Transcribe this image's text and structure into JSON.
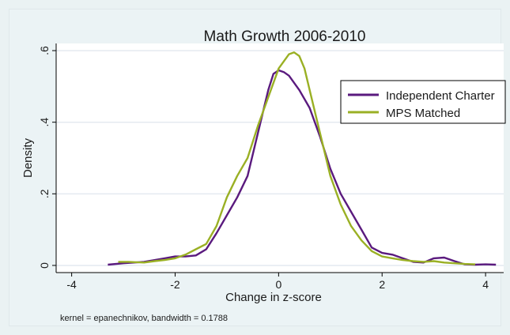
{
  "chart_data": {
    "type": "line",
    "title": "Math Growth 2006-2010",
    "xlabel": "Change in z-score",
    "ylabel": "Density",
    "note": "kernel = epanechnikov, bandwidth = 0.1788",
    "xlim": [
      -4.3,
      4.35
    ],
    "ylim": [
      -0.02,
      0.62
    ],
    "x_ticks": [
      -4,
      -2,
      0,
      2,
      4
    ],
    "x_tick_labels": [
      "-4",
      "-2",
      "0",
      "2",
      "4"
    ],
    "y_ticks": [
      0,
      0.2,
      0.4,
      0.6
    ],
    "y_tick_labels": [
      "0",
      ".2",
      ".4",
      ".6"
    ],
    "grid": true,
    "legend_position": "right",
    "series": [
      {
        "name": "Independent Charter",
        "color": "#5a1a7e",
        "x": [
          -3.3,
          -3.0,
          -2.6,
          -2.2,
          -2.0,
          -1.8,
          -1.6,
          -1.4,
          -1.2,
          -1.0,
          -0.8,
          -0.6,
          -0.4,
          -0.2,
          -0.1,
          0.0,
          0.1,
          0.2,
          0.4,
          0.6,
          0.8,
          1.0,
          1.2,
          1.4,
          1.6,
          1.8,
          2.0,
          2.2,
          2.4,
          2.6,
          2.8,
          3.0,
          3.2,
          3.4,
          3.6,
          3.8,
          4.0,
          4.2
        ],
        "y": [
          0.002,
          0.006,
          0.01,
          0.02,
          0.025,
          0.025,
          0.028,
          0.045,
          0.09,
          0.14,
          0.19,
          0.25,
          0.37,
          0.49,
          0.535,
          0.545,
          0.54,
          0.53,
          0.49,
          0.44,
          0.36,
          0.27,
          0.2,
          0.15,
          0.1,
          0.05,
          0.035,
          0.03,
          0.02,
          0.01,
          0.008,
          0.02,
          0.022,
          0.012,
          0.003,
          0.002,
          0.003,
          0.002
        ]
      },
      {
        "name": "MPS Matched",
        "color": "#9ab024",
        "x": [
          -3.1,
          -2.9,
          -2.6,
          -2.4,
          -2.2,
          -2.0,
          -1.8,
          -1.6,
          -1.4,
          -1.2,
          -1.0,
          -0.8,
          -0.6,
          -0.4,
          -0.2,
          0.0,
          0.1,
          0.2,
          0.3,
          0.4,
          0.5,
          0.6,
          0.8,
          1.0,
          1.2,
          1.4,
          1.6,
          1.8,
          2.0,
          2.2,
          2.4,
          2.6,
          2.8,
          3.0,
          3.2,
          3.4,
          3.6,
          3.8
        ],
        "y": [
          0.01,
          0.01,
          0.008,
          0.012,
          0.015,
          0.02,
          0.03,
          0.045,
          0.06,
          0.11,
          0.19,
          0.25,
          0.3,
          0.39,
          0.47,
          0.55,
          0.57,
          0.59,
          0.595,
          0.585,
          0.55,
          0.49,
          0.37,
          0.25,
          0.17,
          0.11,
          0.07,
          0.04,
          0.025,
          0.02,
          0.015,
          0.012,
          0.01,
          0.012,
          0.008,
          0.006,
          0.004,
          0.003
        ]
      }
    ]
  }
}
